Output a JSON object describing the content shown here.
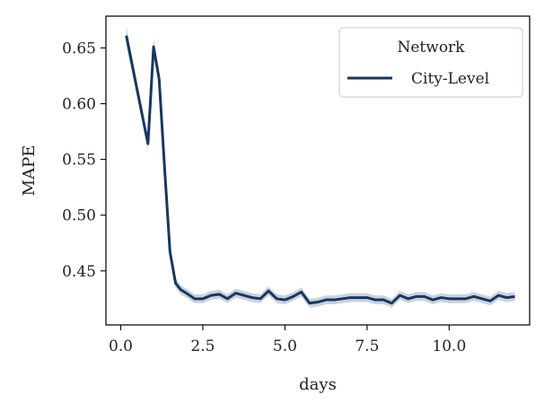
{
  "chart_data": {
    "type": "line",
    "xlabel": "days",
    "ylabel": "MAPE",
    "xlim": [
      -0.45,
      12.45
    ],
    "ylim": [
      0.4015,
      0.6785
    ],
    "x_ticks": [
      0.0,
      2.5,
      5.0,
      7.5,
      10.0
    ],
    "x_tick_labels": [
      "0.0",
      "2.5",
      "5.0",
      "7.5",
      "10.0"
    ],
    "y_ticks": [
      0.45,
      0.5,
      0.55,
      0.6,
      0.65
    ],
    "y_tick_labels": [
      "0.45",
      "0.50",
      "0.55",
      "0.60",
      "0.65"
    ],
    "grid": false,
    "legend": {
      "title": "Network",
      "placement": "top-right"
    },
    "colors": {
      "line": "#17375e",
      "band": "#b8c4d2"
    },
    "series": [
      {
        "name": "City-Level",
        "x": [
          0.17,
          0.83,
          1.0,
          1.17,
          1.33,
          1.5,
          1.67,
          1.83,
          2.0,
          2.25,
          2.5,
          2.75,
          3.0,
          3.25,
          3.5,
          3.75,
          4.0,
          4.25,
          4.5,
          4.75,
          5.0,
          5.25,
          5.5,
          5.75,
          6.0,
          6.25,
          6.5,
          6.75,
          7.0,
          7.25,
          7.5,
          7.75,
          8.0,
          8.25,
          8.5,
          8.75,
          9.0,
          9.25,
          9.5,
          9.75,
          10.0,
          10.25,
          10.5,
          10.75,
          11.0,
          11.25,
          11.5,
          11.75,
          12.0
        ],
        "y": [
          0.661,
          0.564,
          0.651,
          0.622,
          0.545,
          0.467,
          0.439,
          0.433,
          0.43,
          0.425,
          0.425,
          0.428,
          0.429,
          0.425,
          0.43,
          0.428,
          0.426,
          0.425,
          0.432,
          0.425,
          0.424,
          0.427,
          0.431,
          0.421,
          0.422,
          0.424,
          0.424,
          0.425,
          0.426,
          0.426,
          0.426,
          0.424,
          0.424,
          0.421,
          0.428,
          0.425,
          0.427,
          0.427,
          0.424,
          0.426,
          0.425,
          0.425,
          0.425,
          0.427,
          0.425,
          0.423,
          0.428,
          0.426,
          0.427
        ],
        "band": [
          0.008,
          0.005,
          0.008,
          0.006,
          0.005,
          0.004,
          0.004,
          0.004,
          0.004,
          0.004,
          0.004,
          0.004,
          0.004,
          0.004,
          0.004,
          0.004,
          0.004,
          0.004,
          0.004,
          0.004,
          0.004,
          0.004,
          0.004,
          0.004,
          0.004,
          0.004,
          0.004,
          0.004,
          0.004,
          0.004,
          0.004,
          0.004,
          0.004,
          0.004,
          0.004,
          0.004,
          0.004,
          0.004,
          0.004,
          0.004,
          0.004,
          0.004,
          0.004,
          0.004,
          0.004,
          0.004,
          0.004,
          0.004,
          0.004
        ]
      }
    ]
  }
}
